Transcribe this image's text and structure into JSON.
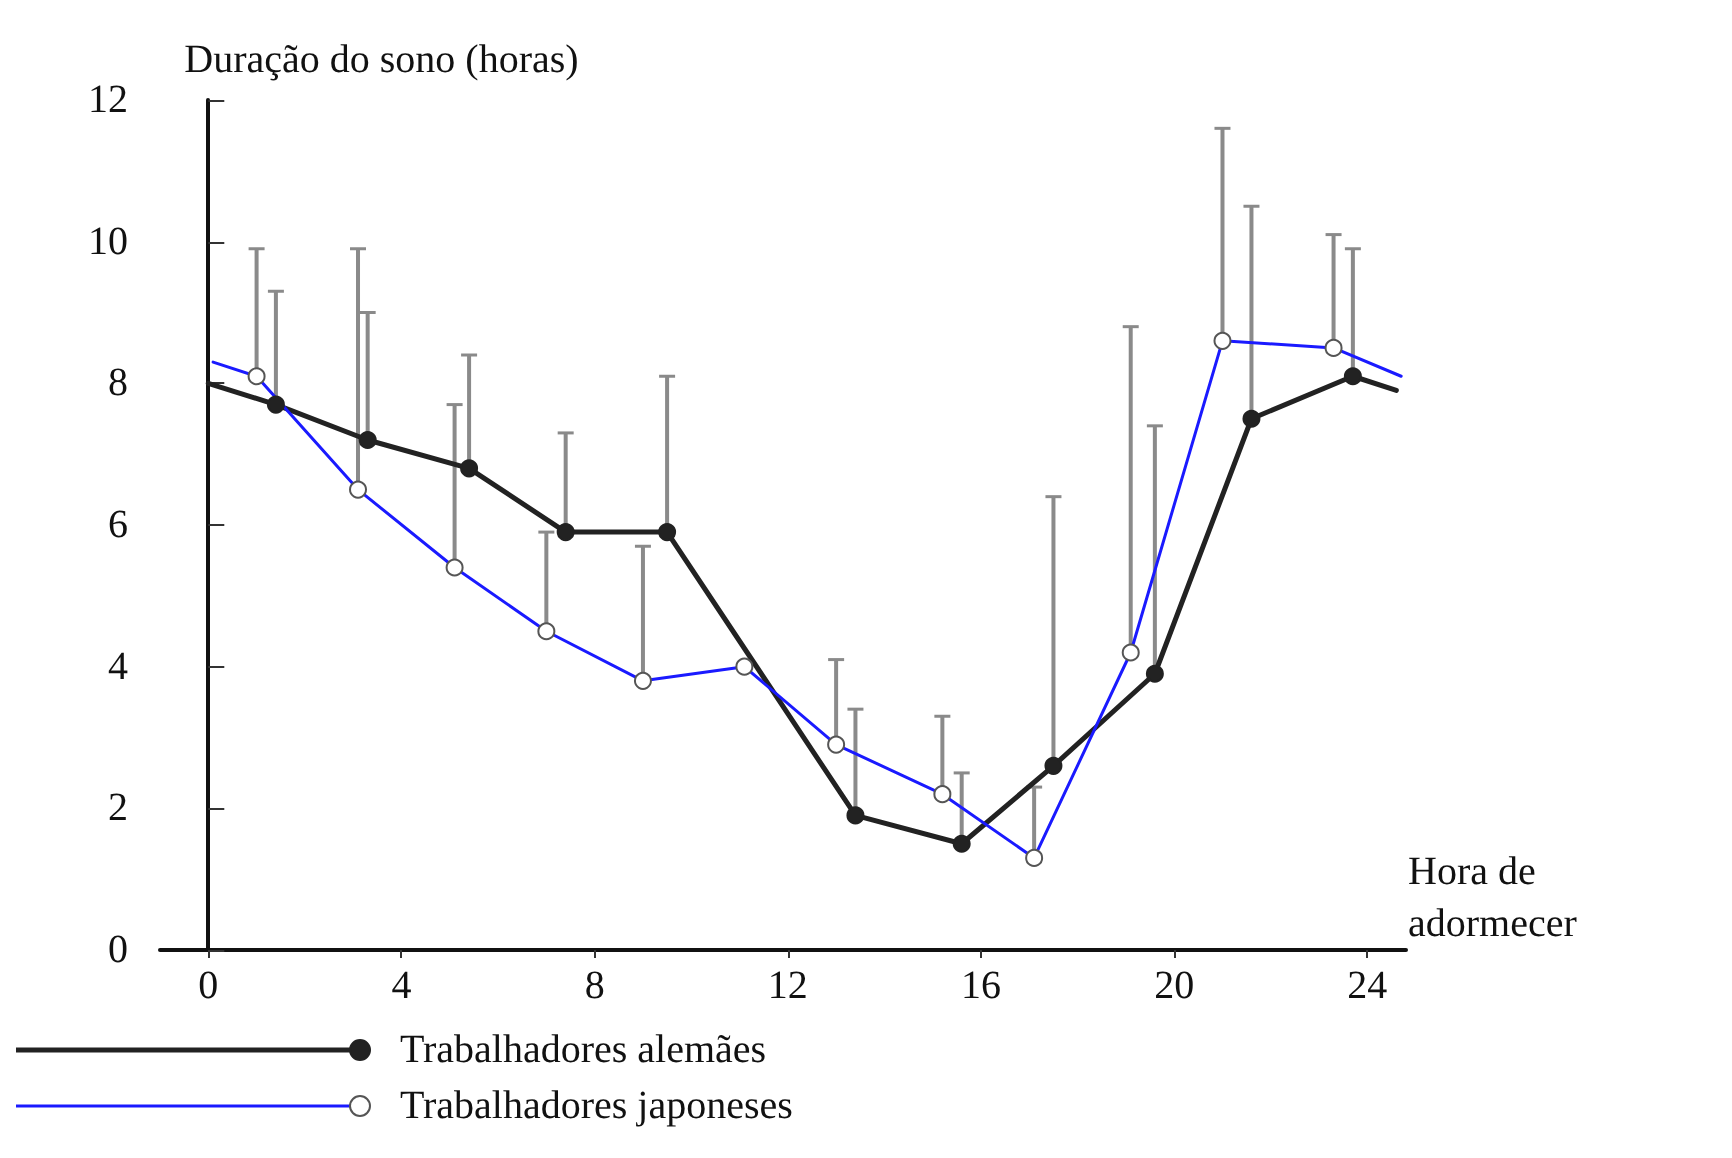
{
  "chart_data": {
    "type": "line",
    "ylabel": "Duração do sono (horas)",
    "xlabel": "Hora de adormecer",
    "xlim": [
      -1,
      24.8
    ],
    "xticks": [
      0,
      4,
      8,
      12,
      16,
      20,
      24
    ],
    "ylim": [
      0,
      12
    ],
    "yticks": [
      0,
      2,
      4,
      6,
      8,
      10,
      12
    ],
    "grid": false,
    "legend": "bottom left",
    "marker": "circle",
    "line_style": "solid",
    "series": [
      {
        "name": "Trabalhadores alemães",
        "color": "#222222",
        "x": [
          0,
          1.4,
          3.3,
          5.4,
          7.4,
          9.5,
          13.4,
          15.6,
          17.5,
          19.6,
          21.6,
          23.7,
          24.6
        ],
        "values": [
          8.0,
          7.7,
          7.2,
          6.8,
          5.9,
          5.9,
          1.9,
          1.5,
          2.6,
          3.9,
          7.5,
          8.1,
          7.9
        ],
        "errors": [
          null,
          [
            7.7,
            9.3
          ],
          [
            7.2,
            9.0
          ],
          [
            6.8,
            8.4
          ],
          [
            5.9,
            7.3
          ],
          [
            5.9,
            8.1
          ],
          [
            1.9,
            3.4
          ],
          [
            1.5,
            2.5
          ],
          [
            2.6,
            6.4
          ],
          [
            3.9,
            7.4
          ],
          [
            7.5,
            10.5
          ],
          [
            8.1,
            9.9
          ],
          null
        ]
      },
      {
        "name": "Trabalhadores japoneses",
        "color": "#1a1aff",
        "x": [
          0.1,
          1.0,
          3.1,
          5.1,
          7.0,
          9.0,
          11.1,
          13.0,
          15.2,
          17.1,
          19.1,
          21.0,
          23.3,
          24.7
        ],
        "values": [
          8.3,
          8.1,
          6.5,
          5.4,
          4.5,
          3.8,
          4.0,
          2.9,
          2.2,
          1.3,
          4.2,
          8.6,
          8.5,
          8.1
        ],
        "errors": [
          null,
          [
            8.1,
            9.9
          ],
          [
            6.5,
            9.9
          ],
          [
            5.4,
            7.7
          ],
          [
            4.5,
            5.9
          ],
          [
            3.8,
            5.7
          ],
          null,
          [
            2.9,
            4.1
          ],
          [
            2.2,
            3.3
          ],
          [
            1.3,
            2.3
          ],
          [
            4.2,
            8.8
          ],
          [
            8.6,
            11.6
          ],
          [
            8.5,
            10.1
          ],
          null
        ]
      }
    ]
  }
}
